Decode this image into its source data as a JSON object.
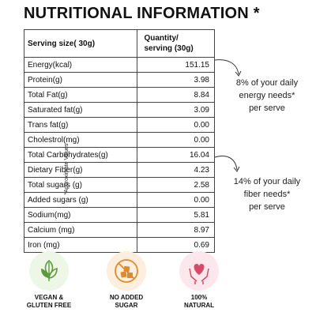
{
  "title": "NUTRITIONAL INFORMATION *",
  "side_note": "*Approximate Values",
  "table": {
    "header_left": "Serving size( 30g)",
    "header_right_line1": "Quantity/",
    "header_right_line2": "serving (30g)",
    "rows": [
      {
        "label": "Energy(kcal)",
        "value": "151.15"
      },
      {
        "label": "Protein(g)",
        "value": "3.98"
      },
      {
        "label": "Total Fat(g)",
        "value": "8.84"
      },
      {
        "label": "Saturated fat(g)",
        "value": "3.09"
      },
      {
        "label": "Trans fat(g)",
        "value": "0.00"
      },
      {
        "label": "Cholestrol(mg)",
        "value": "0.00"
      },
      {
        "label": "Total Carbohydrates(g)",
        "value": "16.04"
      },
      {
        "label": "Dietary  Fiber(g)",
        "value": "4.23"
      },
      {
        "label": "Total sugars (g)",
        "value": "2.58"
      },
      {
        "label": "Added sugars (g)",
        "value": "0.00"
      },
      {
        "label": "Sodium(mg)",
        "value": "5.81"
      },
      {
        "label": "Calcium (mg)",
        "value": "8.97"
      },
      {
        "label": "Iron (mg)",
        "value": "0.69"
      }
    ]
  },
  "notes": {
    "energy": {
      "line1": "8% of your daily",
      "line2": "energy needs*",
      "line3": "per serve"
    },
    "fiber": {
      "line1": "14% of your daily",
      "line2": "fiber needs*",
      "line3": "per serve"
    }
  },
  "badges": [
    {
      "line1": "VEGAN &",
      "line2": "GLUTEN FREE",
      "icon": "vegan-leaf-icon",
      "color": "#5a9a3c"
    },
    {
      "line1": "NO ADDED",
      "line2": "SUGAR",
      "icon": "no-sugar-icon",
      "color": "#e08a2c"
    },
    {
      "line1": "100%",
      "line2": "NATURAL",
      "icon": "heart-hands-icon",
      "color": "#d64a6a"
    }
  ]
}
